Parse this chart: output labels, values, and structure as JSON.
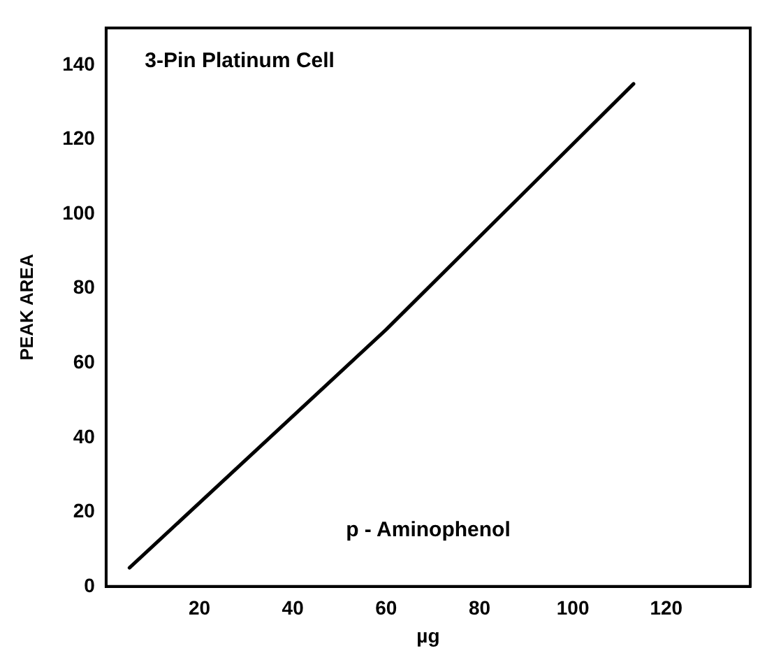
{
  "chart_data": {
    "type": "line",
    "xlabel": "µg",
    "ylabel": "PEAK AREA",
    "annotations": [
      "3-Pin Platinum Cell",
      "p - Aminophenol"
    ],
    "series": [
      {
        "color": "#000000",
        "x": [
          5,
          60,
          113
        ],
        "values": [
          5,
          69,
          135
        ]
      }
    ],
    "xlim": [
      0,
      138
    ],
    "xticks": [
      20,
      40,
      60,
      80,
      100,
      120
    ],
    "ylim": [
      0,
      150
    ],
    "yticks": [
      0,
      20,
      40,
      60,
      80,
      100,
      120,
      140
    ],
    "grid": false,
    "legend": false,
    "marker": "none",
    "line_style": "solid"
  }
}
